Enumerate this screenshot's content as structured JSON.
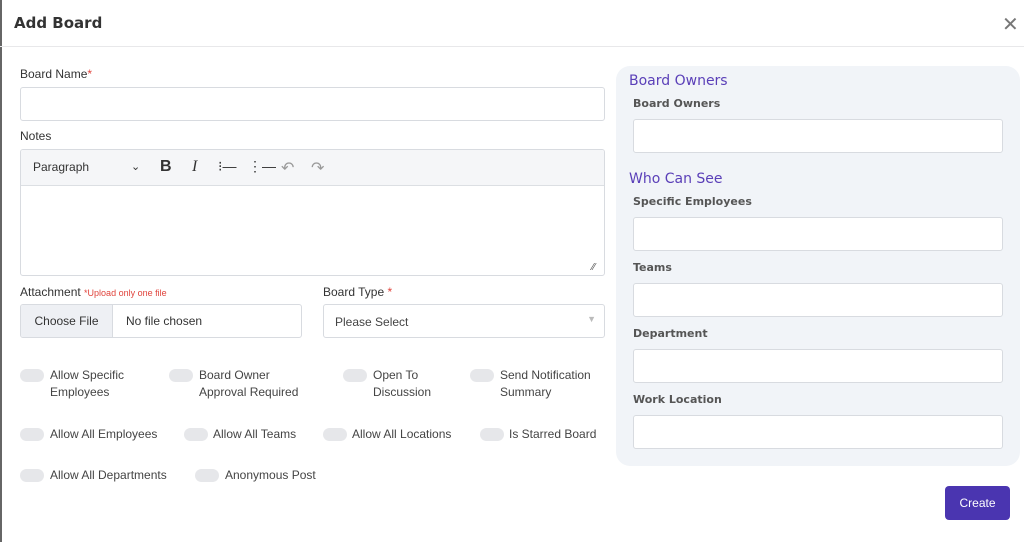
{
  "dialog": {
    "title": "Add Board",
    "close_icon": "close-icon"
  },
  "form": {
    "board_name_label": "Board Name",
    "required_mark": "*",
    "notes_label": "Notes",
    "editor": {
      "paragraph": "Paragraph",
      "icons": [
        "chevron-down-icon",
        "bold-icon",
        "italic-icon",
        "bullet-list-icon",
        "numbered-list-icon",
        "undo-icon",
        "redo-icon"
      ]
    },
    "attachment_label": "Attachment",
    "attachment_hint": "*Upload only one file",
    "choose_file": "Choose File",
    "no_file": "No file chosen",
    "board_type_label": "Board Type",
    "board_type_placeholder": "Please Select",
    "toggles": [
      {
        "label": "Allow Specific Employees",
        "on": false
      },
      {
        "label": "Board Owner Approval Required",
        "on": false
      },
      {
        "label": "Open To Discussion",
        "on": false
      },
      {
        "label": "Send Notification Summary",
        "on": false
      },
      {
        "label": "Allow All Employees",
        "on": false
      },
      {
        "label": "Allow All Teams",
        "on": false
      },
      {
        "label": "Allow All Locations",
        "on": false
      },
      {
        "label": "Is Starred Board",
        "on": false
      },
      {
        "label": "Allow All Departments",
        "on": false
      },
      {
        "label": "Anonymous Post",
        "on": false
      }
    ]
  },
  "panel": {
    "owners_heading": "Board Owners",
    "owners_label": "Board Owners",
    "who_heading": "Who Can See",
    "specific_label": "Specific Employees",
    "teams_label": "Teams",
    "department_label": "Department",
    "location_label": "Work Location"
  },
  "create": "Create",
  "colors": {
    "accent": "#4a35b0",
    "heading": "#5a3fb8",
    "required": "#e0443c",
    "panel_bg": "#f1f4f8"
  }
}
